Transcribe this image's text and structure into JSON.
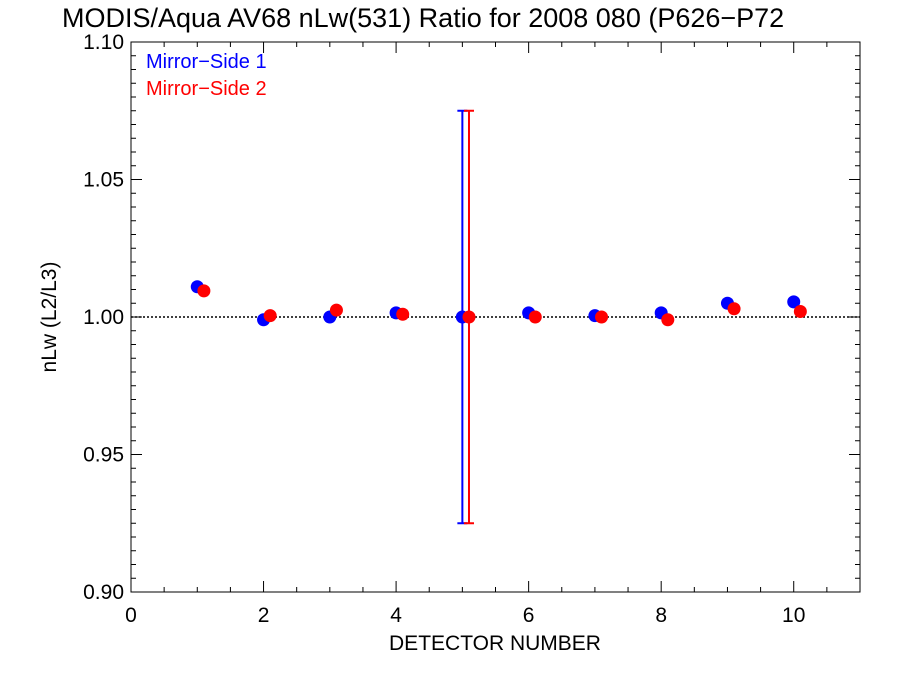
{
  "chart_data": {
    "type": "scatter",
    "title": "MODIS/Aqua AV68 nLw(531) Ratio for 2008 080 (P626−P72",
    "xlabel": "DETECTOR NUMBER",
    "ylabel": "nLw (L2/L3)",
    "xlim": [
      0,
      11
    ],
    "ylim": [
      0.9,
      1.1
    ],
    "x_ticks": [
      0,
      2,
      4,
      6,
      8,
      10
    ],
    "x_tick_labels": [
      "0",
      "2",
      "4",
      "6",
      "8",
      "10"
    ],
    "y_ticks": [
      0.9,
      0.95,
      1.0,
      1.05,
      1.1
    ],
    "y_tick_labels": [
      "0.90",
      "0.95",
      "1.00",
      "1.05",
      "1.10"
    ],
    "reference_line": 1.0,
    "grid": false,
    "legend_position": "top-left",
    "series": [
      {
        "name": "Mirror−Side 1",
        "color": "#0000ff",
        "x": [
          1,
          2,
          3,
          4,
          5,
          6,
          7,
          8,
          9,
          10
        ],
        "y": [
          1.011,
          0.999,
          1.0,
          1.0015,
          1.0,
          1.0015,
          1.0005,
          1.0015,
          1.005,
          1.0055
        ],
        "error_bar": {
          "x": 5,
          "low": 0.925,
          "high": 1.075
        }
      },
      {
        "name": "Mirror−Side 2",
        "color": "#ff0000",
        "x": [
          1.1,
          2.1,
          3.1,
          4.1,
          5.1,
          6.1,
          7.1,
          8.1,
          9.1,
          10.1
        ],
        "y": [
          1.0095,
          1.0005,
          1.0025,
          1.001,
          1.0,
          1.0,
          1.0,
          0.999,
          1.003,
          1.002
        ],
        "error_bar": {
          "x": 5.1,
          "low": 0.925,
          "high": 1.075
        }
      }
    ]
  }
}
